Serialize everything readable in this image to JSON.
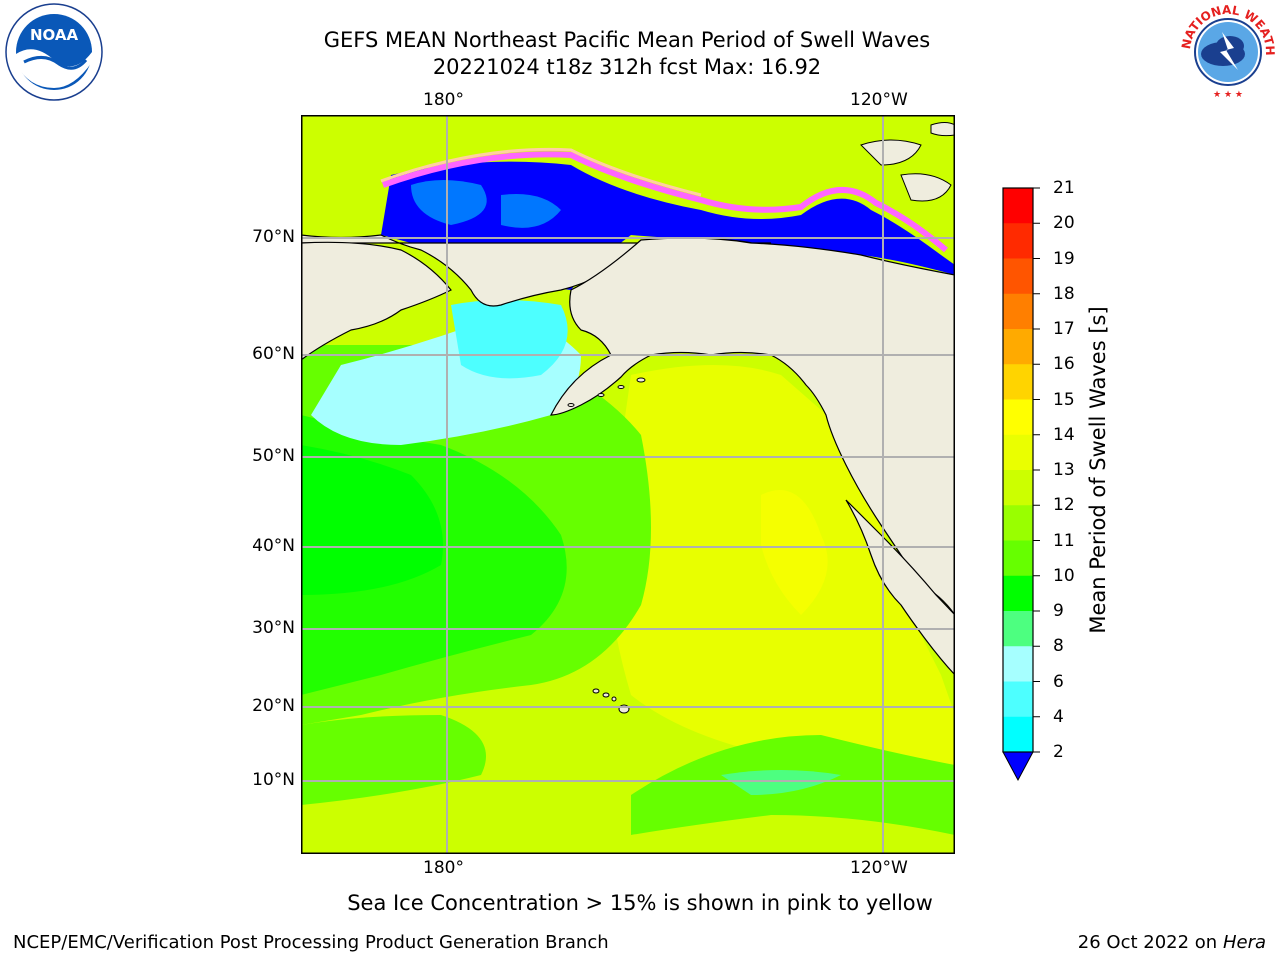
{
  "title": {
    "line1": "GEFS MEAN Northeast Pacific Mean Period of Swell Waves",
    "line2": "20221024 t18z 312h fcst   Max: 16.92"
  },
  "map": {
    "lon_labels_top": [
      "180°",
      "120°W"
    ],
    "lon_labels_bottom": [
      "180°",
      "120°W"
    ],
    "lat_labels": [
      "70°N",
      "60°N",
      "50°N",
      "40°N",
      "30°N",
      "20°N",
      "10°N"
    ],
    "colors": {
      "land": "#efedde",
      "ocean_base": "#ccff00",
      "frame": "#000000",
      "grid": "#b0b0b0"
    }
  },
  "colorbar": {
    "label": "Mean Period of Swell Waves [s]",
    "ticks": [
      "21",
      "20",
      "19",
      "18",
      "17",
      "16",
      "15",
      "14",
      "13",
      "12",
      "11",
      "10",
      "9",
      "8",
      "6",
      "4",
      "2"
    ],
    "colors": [
      "#ff0000",
      "#ff2a00",
      "#ff5500",
      "#ff7f00",
      "#ffaa00",
      "#ffd400",
      "#ffff00",
      "#eaff00",
      "#ccff00",
      "#99ff00",
      "#66ff00",
      "#00ff00",
      "#4dff80",
      "#a6ffff",
      "#4dffff",
      "#00ffff",
      "#00ddff",
      "#0077ff",
      "#0000ff"
    ]
  },
  "caption": "Sea Ice Concentration > 15% is shown in pink to yellow",
  "footer": {
    "left": "NCEP/EMC/Verification Post Processing Product Generation Branch",
    "right_date": "26 Oct 2022 on ",
    "right_host": "Hera"
  },
  "logos": {
    "noaa_text": "NOAA",
    "nws_text": "NATIONAL WEATHER SERVICE"
  }
}
